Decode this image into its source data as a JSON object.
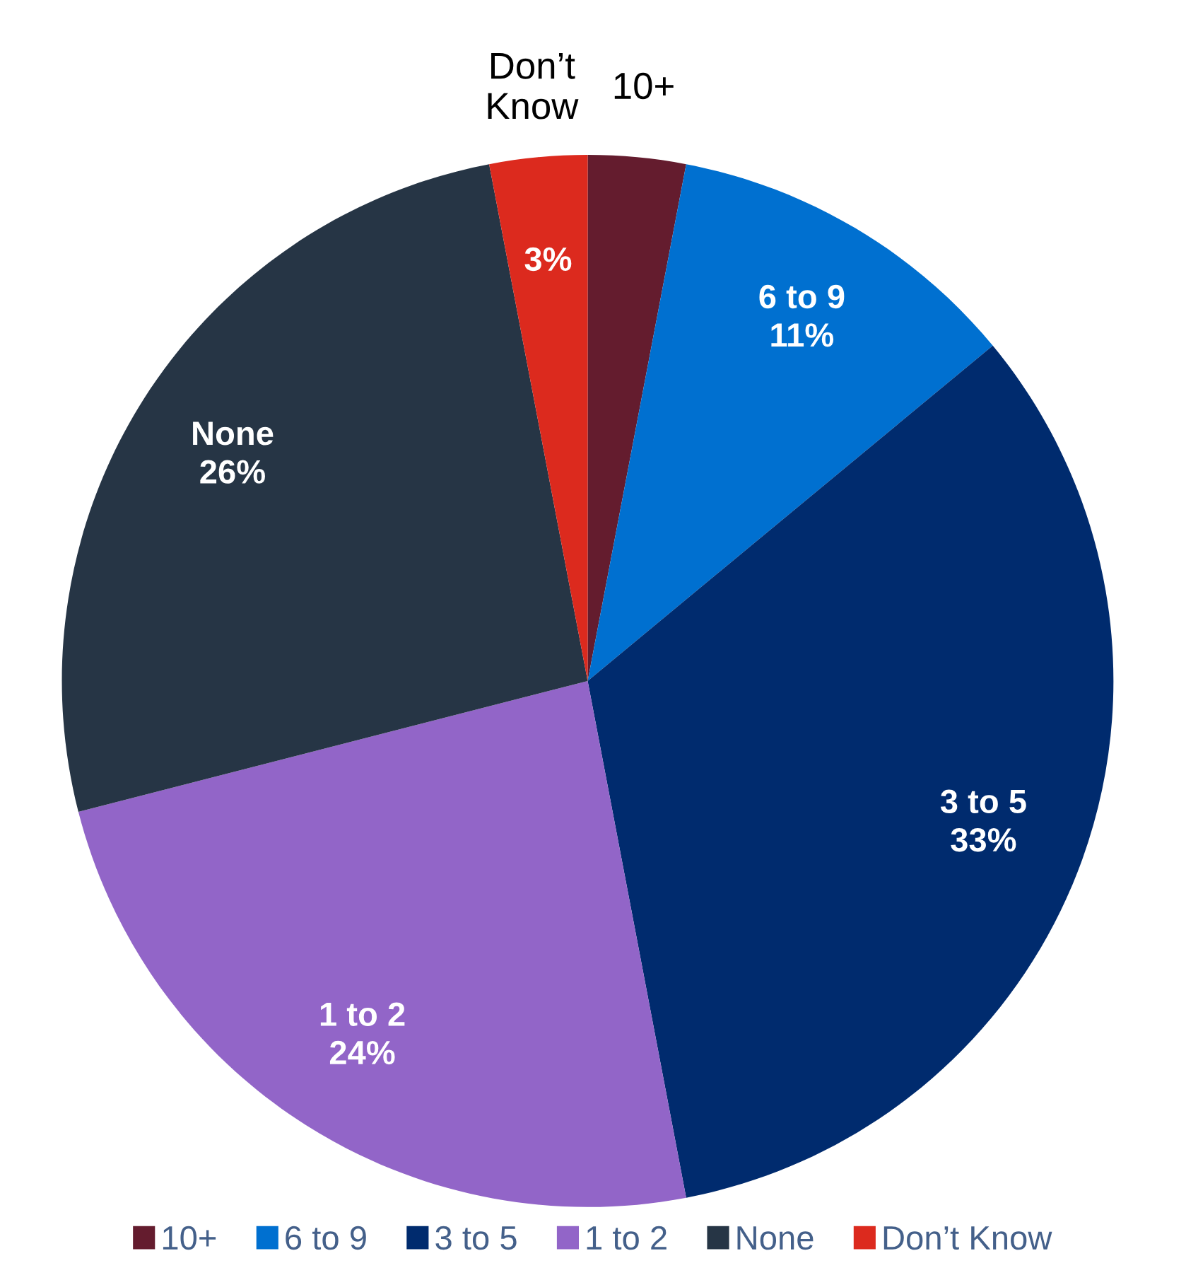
{
  "chart_data": {
    "type": "pie",
    "categories": [
      "10+",
      "6 to 9",
      "3 to 5",
      "1 to 2",
      "None",
      "Don’t Know"
    ],
    "values": [
      3,
      11,
      33,
      24,
      26,
      3
    ],
    "colors": [
      "#641c2e",
      "#0070d0",
      "#002b6e",
      "#9265c8",
      "#263545",
      "#dc2a1e"
    ],
    "value_labels": [
      null,
      "11%",
      "33%",
      "24%",
      "26%",
      "3%"
    ],
    "legend": "bottom"
  }
}
